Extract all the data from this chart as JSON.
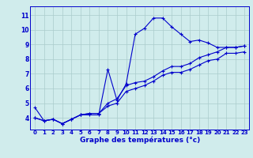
{
  "xlabel": "Graphe des températures (°c)",
  "x": [
    0,
    1,
    2,
    3,
    4,
    5,
    6,
    7,
    8,
    9,
    10,
    11,
    12,
    13,
    14,
    15,
    16,
    17,
    18,
    19,
    20,
    21,
    22,
    23
  ],
  "line1": [
    4.7,
    3.8,
    3.9,
    3.6,
    3.9,
    4.2,
    4.2,
    4.2,
    7.3,
    5.2,
    6.3,
    9.7,
    10.1,
    10.8,
    10.8,
    10.2,
    9.7,
    9.2,
    9.3,
    9.1,
    8.8,
    8.8,
    8.8,
    8.9
  ],
  "line2": [
    4.0,
    3.8,
    3.9,
    3.6,
    3.9,
    4.2,
    4.3,
    4.3,
    5.0,
    5.3,
    6.2,
    6.4,
    6.5,
    6.8,
    7.2,
    7.5,
    7.5,
    7.7,
    8.1,
    8.3,
    8.5,
    8.8,
    8.8,
    8.9
  ],
  "line3": [
    4.0,
    3.8,
    3.9,
    3.6,
    3.9,
    4.2,
    4.3,
    4.3,
    4.8,
    5.0,
    5.8,
    6.0,
    6.2,
    6.5,
    6.9,
    7.1,
    7.1,
    7.3,
    7.6,
    7.9,
    8.0,
    8.4,
    8.4,
    8.5
  ],
  "line_color": "#0000cc",
  "bg_color": "#d0ecec",
  "grid_color": "#aacccc",
  "ylim": [
    3.2,
    11.6
  ],
  "yticks": [
    4,
    5,
    6,
    7,
    8,
    9,
    10,
    11
  ],
  "xlim": [
    -0.5,
    23.5
  ]
}
